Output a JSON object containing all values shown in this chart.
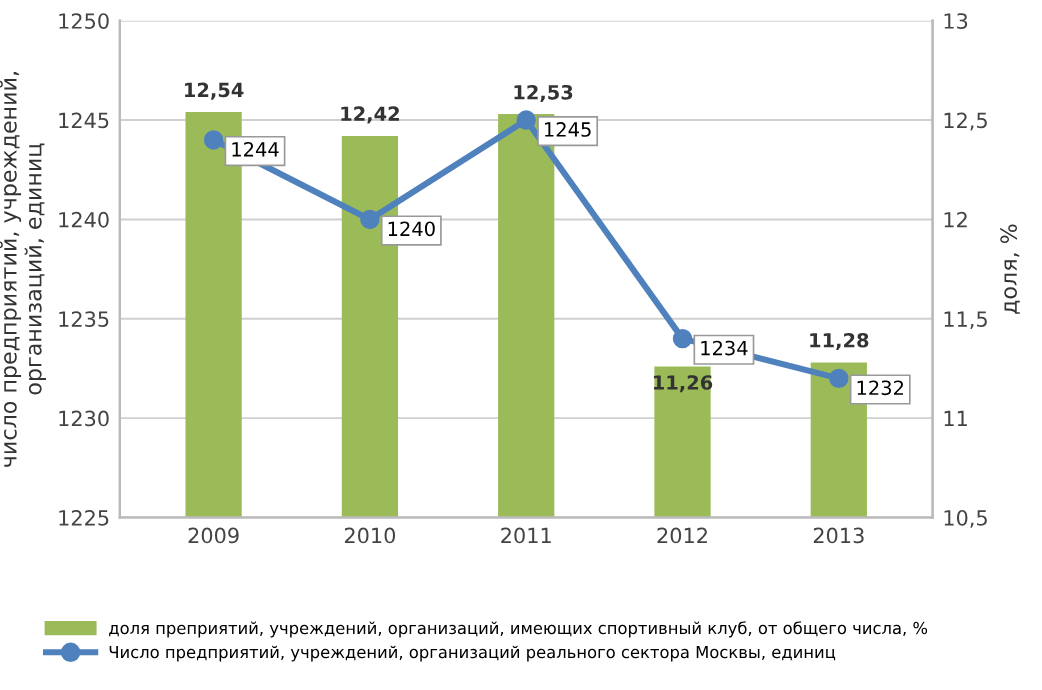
{
  "chart_data": {
    "type": "bar",
    "ylabel": "число предприятий, учреждений,\nорганизаций, единиц",
    "y2label": "доля, %",
    "categories": [
      "2009",
      "2010",
      "2011",
      "2012",
      "2013"
    ],
    "series": [
      {
        "name": "доля преприятий, учреждений, организаций, имеющих спортивный клуб, от общего числа, %",
        "axis": "y2",
        "color": "#9bbb59",
        "values": [
          12.54,
          12.42,
          12.53,
          11.26,
          11.28
        ],
        "value_labels": [
          "12,54",
          "12,42",
          "12,53",
          "11,26",
          "11,28"
        ]
      },
      {
        "name": "Число предприятий, учреждений, организаций реального сектора Москвы, единиц",
        "type": "line",
        "axis": "y",
        "color": "#4f81bd",
        "marker": "circle",
        "line_style": "solid",
        "values": [
          1244,
          1240,
          1245,
          1234,
          1232
        ],
        "value_labels": [
          "1244",
          "1240",
          "1245",
          "1234",
          "1232"
        ]
      }
    ],
    "ylim": [
      1225,
      1250
    ],
    "yticks": [
      1225,
      1230,
      1235,
      1240,
      1245,
      1250
    ],
    "y2lim": [
      10.5,
      13
    ],
    "y2ticks": [
      {
        "value": 10.5,
        "label": "10,5"
      },
      11,
      {
        "value": 11.5,
        "label": "11,5"
      },
      12,
      {
        "value": 12.5,
        "label": "12,5"
      },
      13
    ],
    "grid": "y",
    "legend": "bottom"
  }
}
